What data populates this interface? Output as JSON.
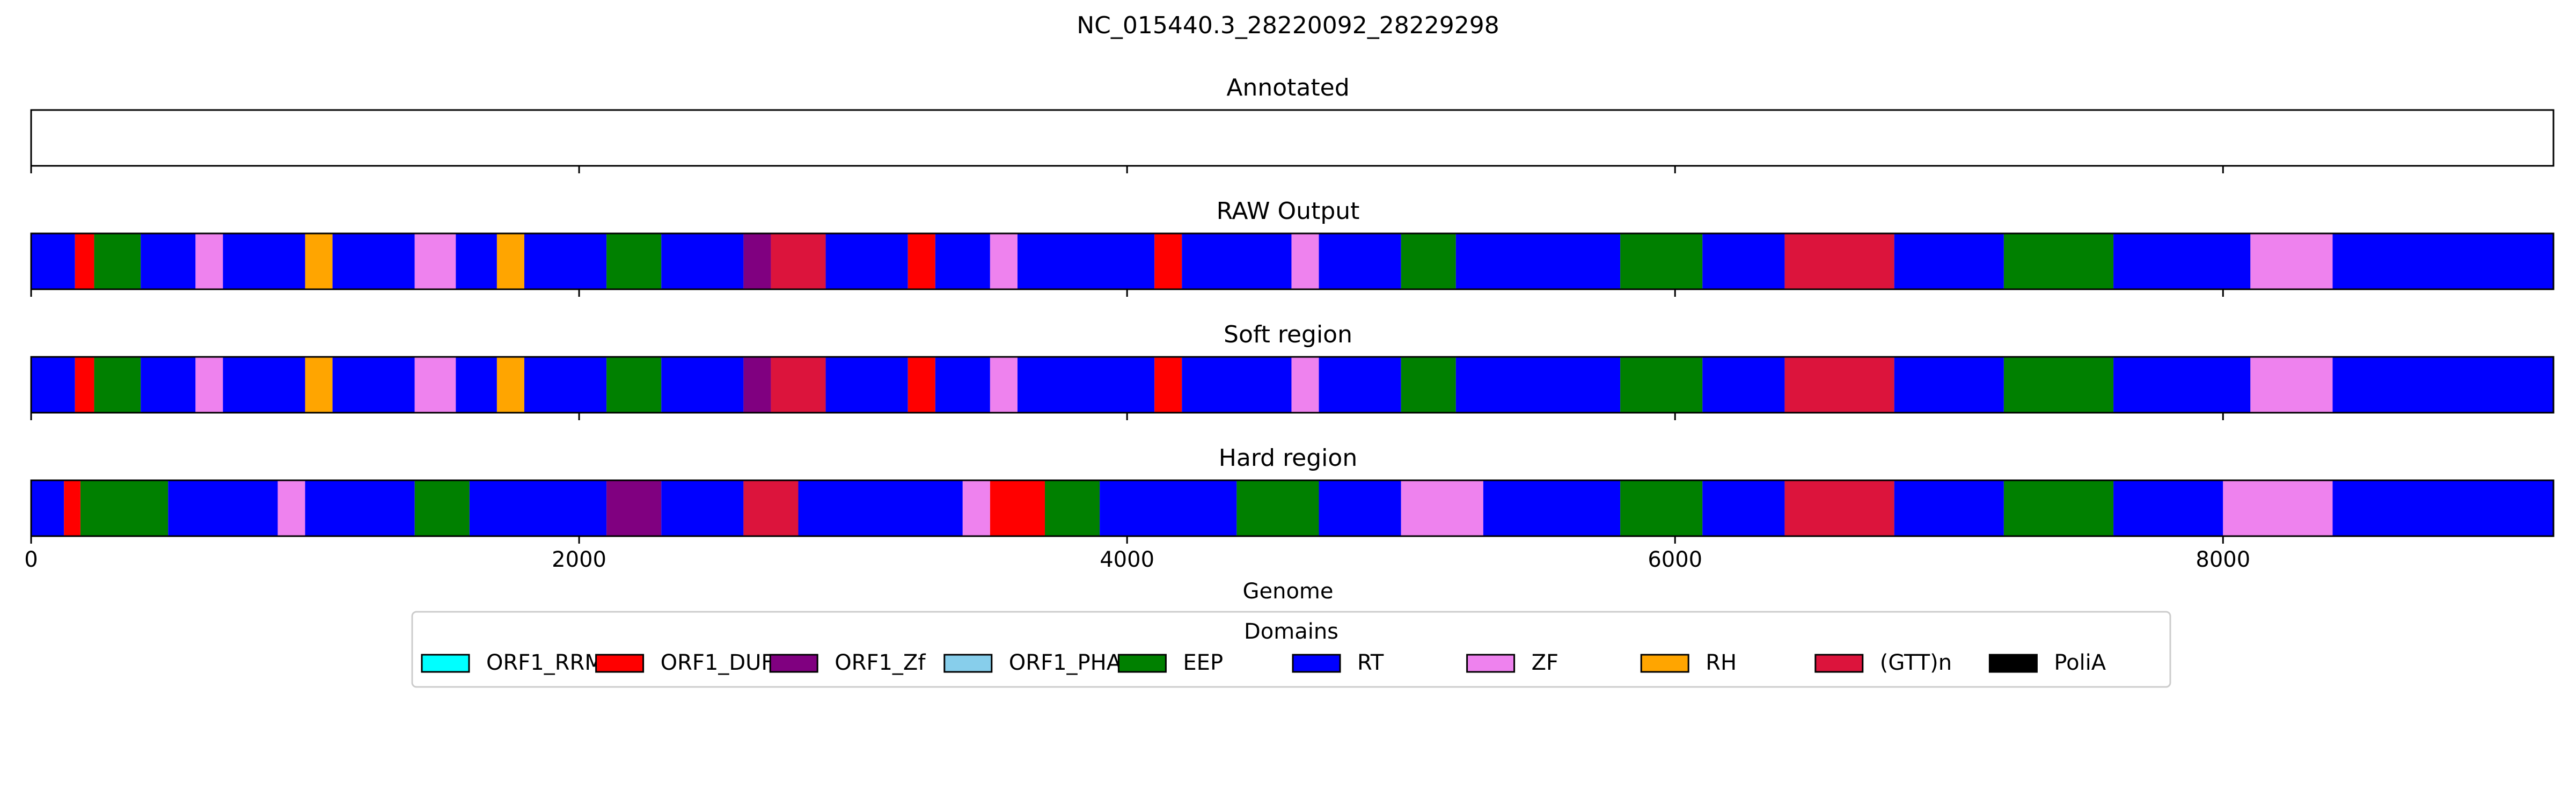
{
  "chart_data": {
    "type": "bar",
    "title": "NC_015440.3_28220092_28229298",
    "xlabel": "Genome",
    "xlim": [
      0,
      9206
    ],
    "x_ticks": [
      0,
      2000,
      4000,
      6000,
      8000
    ],
    "x_tick_labels": [
      "0",
      "2000",
      "4000",
      "6000",
      "8000"
    ],
    "legend": {
      "title": "Domains",
      "placement": "bottom-center",
      "entries": [
        {
          "name": "ORF1_RRM",
          "color": "#00ffff"
        },
        {
          "name": "ORF1_DUF",
          "color": "#ff0000"
        },
        {
          "name": "ORF1_Zf",
          "color": "#800080"
        },
        {
          "name": "ORF1_PHA",
          "color": "#87ceeb"
        },
        {
          "name": "EEP",
          "color": "#008000"
        },
        {
          "name": "RT",
          "color": "#0000ff"
        },
        {
          "name": "ZF",
          "color": "#ee82ee"
        },
        {
          "name": "RH",
          "color": "#ffa500"
        },
        {
          "name": "(GTT)n",
          "color": "#dc143c"
        },
        {
          "name": "PoliA",
          "color": "#000000"
        }
      ]
    },
    "tracks": [
      {
        "name": "Annotated",
        "segments": []
      },
      {
        "name": "RAW Output",
        "segments": [
          {
            "start": 0,
            "end": 160,
            "domain": "RT"
          },
          {
            "start": 160,
            "end": 230,
            "domain": "ORF1_DUF"
          },
          {
            "start": 230,
            "end": 400,
            "domain": "EEP"
          },
          {
            "start": 400,
            "end": 600,
            "domain": "RT"
          },
          {
            "start": 600,
            "end": 700,
            "domain": "ZF"
          },
          {
            "start": 700,
            "end": 1000,
            "domain": "RT"
          },
          {
            "start": 1000,
            "end": 1100,
            "domain": "RH"
          },
          {
            "start": 1100,
            "end": 1400,
            "domain": "RT"
          },
          {
            "start": 1400,
            "end": 1550,
            "domain": "ZF"
          },
          {
            "start": 1550,
            "end": 1700,
            "domain": "RT"
          },
          {
            "start": 1700,
            "end": 1800,
            "domain": "RH"
          },
          {
            "start": 1800,
            "end": 2100,
            "domain": "RT"
          },
          {
            "start": 2100,
            "end": 2300,
            "domain": "EEP"
          },
          {
            "start": 2300,
            "end": 2600,
            "domain": "RT"
          },
          {
            "start": 2600,
            "end": 2700,
            "domain": "ORF1_Zf"
          },
          {
            "start": 2700,
            "end": 2900,
            "domain": "(GTT)n"
          },
          {
            "start": 2900,
            "end": 3200,
            "domain": "RT"
          },
          {
            "start": 3200,
            "end": 3300,
            "domain": "ORF1_DUF"
          },
          {
            "start": 3300,
            "end": 3500,
            "domain": "RT"
          },
          {
            "start": 3500,
            "end": 3600,
            "domain": "ZF"
          },
          {
            "start": 3600,
            "end": 4100,
            "domain": "RT"
          },
          {
            "start": 4100,
            "end": 4200,
            "domain": "ORF1_DUF"
          },
          {
            "start": 4200,
            "end": 4600,
            "domain": "RT"
          },
          {
            "start": 4600,
            "end": 4700,
            "domain": "ZF"
          },
          {
            "start": 4700,
            "end": 5000,
            "domain": "RT"
          },
          {
            "start": 5000,
            "end": 5200,
            "domain": "EEP"
          },
          {
            "start": 5200,
            "end": 5800,
            "domain": "RT"
          },
          {
            "start": 5800,
            "end": 6100,
            "domain": "EEP"
          },
          {
            "start": 6100,
            "end": 6400,
            "domain": "RT"
          },
          {
            "start": 6400,
            "end": 6800,
            "domain": "(GTT)n"
          },
          {
            "start": 6800,
            "end": 7200,
            "domain": "RT"
          },
          {
            "start": 7200,
            "end": 7600,
            "domain": "EEP"
          },
          {
            "start": 7600,
            "end": 8100,
            "domain": "RT"
          },
          {
            "start": 8100,
            "end": 8400,
            "domain": "ZF"
          },
          {
            "start": 8400,
            "end": 9206,
            "domain": "RT"
          }
        ]
      },
      {
        "name": "Soft region",
        "segments": [
          {
            "start": 0,
            "end": 160,
            "domain": "RT"
          },
          {
            "start": 160,
            "end": 230,
            "domain": "ORF1_DUF"
          },
          {
            "start": 230,
            "end": 400,
            "domain": "EEP"
          },
          {
            "start": 400,
            "end": 600,
            "domain": "RT"
          },
          {
            "start": 600,
            "end": 700,
            "domain": "ZF"
          },
          {
            "start": 700,
            "end": 1000,
            "domain": "RT"
          },
          {
            "start": 1000,
            "end": 1100,
            "domain": "RH"
          },
          {
            "start": 1100,
            "end": 1400,
            "domain": "RT"
          },
          {
            "start": 1400,
            "end": 1550,
            "domain": "ZF"
          },
          {
            "start": 1550,
            "end": 1700,
            "domain": "RT"
          },
          {
            "start": 1700,
            "end": 1800,
            "domain": "RH"
          },
          {
            "start": 1800,
            "end": 2100,
            "domain": "RT"
          },
          {
            "start": 2100,
            "end": 2300,
            "domain": "EEP"
          },
          {
            "start": 2300,
            "end": 2600,
            "domain": "RT"
          },
          {
            "start": 2600,
            "end": 2700,
            "domain": "ORF1_Zf"
          },
          {
            "start": 2700,
            "end": 2900,
            "domain": "(GTT)n"
          },
          {
            "start": 2900,
            "end": 3200,
            "domain": "RT"
          },
          {
            "start": 3200,
            "end": 3300,
            "domain": "ORF1_DUF"
          },
          {
            "start": 3300,
            "end": 3500,
            "domain": "RT"
          },
          {
            "start": 3500,
            "end": 3600,
            "domain": "ZF"
          },
          {
            "start": 3600,
            "end": 4100,
            "domain": "RT"
          },
          {
            "start": 4100,
            "end": 4200,
            "domain": "ORF1_DUF"
          },
          {
            "start": 4200,
            "end": 4600,
            "domain": "RT"
          },
          {
            "start": 4600,
            "end": 4700,
            "domain": "ZF"
          },
          {
            "start": 4700,
            "end": 5000,
            "domain": "RT"
          },
          {
            "start": 5000,
            "end": 5200,
            "domain": "EEP"
          },
          {
            "start": 5200,
            "end": 5800,
            "domain": "RT"
          },
          {
            "start": 5800,
            "end": 6100,
            "domain": "EEP"
          },
          {
            "start": 6100,
            "end": 6400,
            "domain": "RT"
          },
          {
            "start": 6400,
            "end": 6800,
            "domain": "(GTT)n"
          },
          {
            "start": 6800,
            "end": 7200,
            "domain": "RT"
          },
          {
            "start": 7200,
            "end": 7600,
            "domain": "EEP"
          },
          {
            "start": 7600,
            "end": 8100,
            "domain": "RT"
          },
          {
            "start": 8100,
            "end": 8400,
            "domain": "ZF"
          },
          {
            "start": 8400,
            "end": 9206,
            "domain": "RT"
          }
        ]
      },
      {
        "name": "Hard region",
        "segments": [
          {
            "start": 0,
            "end": 120,
            "domain": "RT"
          },
          {
            "start": 120,
            "end": 180,
            "domain": "ORF1_DUF"
          },
          {
            "start": 180,
            "end": 500,
            "domain": "EEP"
          },
          {
            "start": 500,
            "end": 900,
            "domain": "RT"
          },
          {
            "start": 900,
            "end": 1000,
            "domain": "ZF"
          },
          {
            "start": 1000,
            "end": 1400,
            "domain": "RT"
          },
          {
            "start": 1400,
            "end": 1600,
            "domain": "EEP"
          },
          {
            "start": 1600,
            "end": 2100,
            "domain": "RT"
          },
          {
            "start": 2100,
            "end": 2300,
            "domain": "ORF1_Zf"
          },
          {
            "start": 2300,
            "end": 2600,
            "domain": "RT"
          },
          {
            "start": 2600,
            "end": 2800,
            "domain": "(GTT)n"
          },
          {
            "start": 2800,
            "end": 3400,
            "domain": "RT"
          },
          {
            "start": 3400,
            "end": 3500,
            "domain": "ZF"
          },
          {
            "start": 3500,
            "end": 3700,
            "domain": "ORF1_DUF"
          },
          {
            "start": 3700,
            "end": 3900,
            "domain": "EEP"
          },
          {
            "start": 3900,
            "end": 4400,
            "domain": "RT"
          },
          {
            "start": 4400,
            "end": 4700,
            "domain": "EEP"
          },
          {
            "start": 4700,
            "end": 5000,
            "domain": "RT"
          },
          {
            "start": 5000,
            "end": 5300,
            "domain": "ZF"
          },
          {
            "start": 5300,
            "end": 5800,
            "domain": "RT"
          },
          {
            "start": 5800,
            "end": 6100,
            "domain": "EEP"
          },
          {
            "start": 6100,
            "end": 6400,
            "domain": "RT"
          },
          {
            "start": 6400,
            "end": 6800,
            "domain": "(GTT)n"
          },
          {
            "start": 6800,
            "end": 7200,
            "domain": "RT"
          },
          {
            "start": 7200,
            "end": 7600,
            "domain": "EEP"
          },
          {
            "start": 7600,
            "end": 8000,
            "domain": "RT"
          },
          {
            "start": 8000,
            "end": 8400,
            "domain": "ZF"
          },
          {
            "start": 8400,
            "end": 9206,
            "domain": "RT"
          }
        ]
      }
    ]
  }
}
